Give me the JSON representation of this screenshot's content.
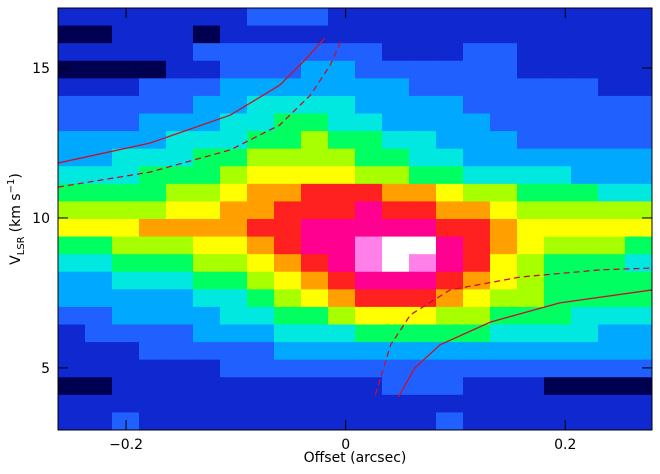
{
  "chart_data": {
    "type": "heatmap",
    "xlabel": "Offset (arcsec)",
    "ylabel": {
      "main": "V",
      "sub": "LSR",
      "unit": "(km s",
      "sup": "−1",
      "close": ")"
    },
    "xlim": [
      -0.262,
      0.279
    ],
    "ylim": [
      2.93,
      17.0
    ],
    "xticks": [
      {
        "value": -0.2,
        "label": "−0.2"
      },
      0,
      0.2
    ],
    "yticks": [
      5,
      10,
      15
    ],
    "colormap": [
      "#000050",
      "#1028d0",
      "#2060ff",
      "#00a8ff",
      "#00e8e0",
      "#00ff60",
      "#a8ff00",
      "#ffff00",
      "#ffa000",
      "#ff2020",
      "#ff0090",
      "#ff80e8",
      "#ffffff"
    ],
    "z": [
      [
        1,
        1,
        1,
        1,
        1,
        1,
        1,
        2,
        2,
        2,
        1,
        1,
        1,
        1,
        1,
        1,
        1,
        1,
        1,
        1,
        1,
        1
      ],
      [
        0,
        0,
        1,
        1,
        1,
        0,
        1,
        1,
        1,
        1,
        1,
        1,
        1,
        1,
        1,
        1,
        1,
        1,
        1,
        1,
        1,
        1
      ],
      [
        1,
        1,
        1,
        1,
        1,
        2,
        2,
        2,
        2,
        2,
        2,
        2,
        1,
        1,
        1,
        2,
        2,
        1,
        1,
        1,
        1,
        1
      ],
      [
        0,
        0,
        0,
        0,
        1,
        1,
        2,
        2,
        2,
        3,
        3,
        2,
        2,
        2,
        2,
        2,
        2,
        1,
        1,
        1,
        1,
        1
      ],
      [
        1,
        1,
        1,
        2,
        2,
        2,
        3,
        3,
        3,
        3,
        3,
        3,
        3,
        2,
        2,
        2,
        2,
        2,
        2,
        2,
        1,
        1
      ],
      [
        2,
        2,
        2,
        2,
        2,
        3,
        3,
        4,
        4,
        4,
        4,
        3,
        3,
        3,
        3,
        2,
        2,
        2,
        2,
        2,
        2,
        2
      ],
      [
        2,
        2,
        2,
        3,
        3,
        3,
        4,
        4,
        5,
        5,
        4,
        4,
        3,
        3,
        3,
        3,
        2,
        2,
        2,
        2,
        2,
        2
      ],
      [
        3,
        3,
        3,
        3,
        4,
        4,
        4,
        5,
        5,
        6,
        5,
        5,
        4,
        4,
        3,
        3,
        3,
        2,
        2,
        2,
        2,
        2
      ],
      [
        3,
        3,
        4,
        4,
        4,
        5,
        5,
        6,
        6,
        6,
        6,
        5,
        5,
        4,
        4,
        3,
        3,
        3,
        3,
        3,
        3,
        3
      ],
      [
        4,
        4,
        4,
        5,
        5,
        5,
        6,
        7,
        7,
        7,
        7,
        6,
        6,
        5,
        5,
        4,
        4,
        4,
        4,
        3,
        3,
        3
      ],
      [
        5,
        5,
        5,
        5,
        6,
        6,
        7,
        8,
        8,
        9,
        9,
        9,
        8,
        8,
        7,
        6,
        6,
        5,
        5,
        5,
        4,
        4
      ],
      [
        6,
        6,
        6,
        6,
        7,
        7,
        8,
        8,
        9,
        9,
        9,
        10,
        9,
        9,
        8,
        8,
        7,
        6,
        6,
        6,
        6,
        6
      ],
      [
        7,
        7,
        7,
        8,
        8,
        8,
        8,
        9,
        9,
        10,
        10,
        10,
        10,
        10,
        9,
        9,
        8,
        7,
        7,
        7,
        7,
        7
      ],
      [
        5,
        5,
        6,
        6,
        6,
        7,
        7,
        8,
        9,
        10,
        10,
        11,
        12,
        12,
        10,
        9,
        8,
        7,
        6,
        6,
        6,
        5
      ],
      [
        4,
        4,
        5,
        5,
        5,
        6,
        6,
        7,
        8,
        9,
        10,
        11,
        12,
        11,
        10,
        9,
        7,
        6,
        5,
        5,
        5,
        4
      ],
      [
        3,
        3,
        4,
        4,
        4,
        5,
        5,
        6,
        7,
        8,
        9,
        10,
        10,
        10,
        9,
        8,
        7,
        6,
        5,
        5,
        5,
        5
      ],
      [
        3,
        3,
        3,
        3,
        3,
        4,
        4,
        5,
        6,
        7,
        8,
        9,
        9,
        9,
        8,
        7,
        6,
        6,
        5,
        5,
        5,
        5
      ],
      [
        2,
        2,
        3,
        3,
        3,
        3,
        4,
        4,
        5,
        5,
        6,
        7,
        7,
        7,
        6,
        6,
        5,
        5,
        5,
        4,
        4,
        4
      ],
      [
        1,
        2,
        2,
        2,
        2,
        3,
        3,
        3,
        4,
        4,
        4,
        5,
        5,
        5,
        5,
        5,
        4,
        4,
        4,
        4,
        3,
        3
      ],
      [
        1,
        1,
        1,
        2,
        2,
        2,
        2,
        2,
        3,
        3,
        3,
        3,
        3,
        3,
        3,
        3,
        3,
        3,
        3,
        3,
        3,
        3
      ],
      [
        1,
        1,
        1,
        1,
        1,
        1,
        2,
        2,
        2,
        2,
        2,
        2,
        2,
        2,
        2,
        2,
        2,
        2,
        2,
        2,
        2,
        2
      ],
      [
        0,
        0,
        1,
        1,
        1,
        1,
        1,
        1,
        1,
        1,
        1,
        1,
        2,
        2,
        2,
        1,
        1,
        1,
        0,
        0,
        0,
        0
      ],
      [
        1,
        1,
        1,
        1,
        1,
        1,
        1,
        1,
        1,
        1,
        1,
        1,
        1,
        1,
        1,
        1,
        1,
        1,
        1,
        1,
        1,
        1
      ],
      [
        1,
        1,
        2,
        1,
        1,
        1,
        1,
        1,
        1,
        1,
        1,
        1,
        1,
        1,
        2,
        1,
        1,
        1,
        1,
        1,
        1,
        1
      ]
    ],
    "curve_color": "#c8102e",
    "curves": [
      {
        "style": "solid",
        "x": [
          -0.262,
          -0.178,
          -0.105,
          -0.06,
          -0.037,
          -0.019
        ],
        "y": [
          11.83,
          12.5,
          13.43,
          14.43,
          15.27,
          16.0
        ]
      },
      {
        "style": "dashed",
        "x": [
          -0.262,
          -0.178,
          -0.105,
          -0.06,
          -0.032,
          -0.014,
          -0.003
        ],
        "y": [
          11.03,
          11.53,
          12.27,
          13.1,
          14.1,
          15.1,
          16.0
        ]
      },
      {
        "style": "dashed",
        "x": [
          0.027,
          0.041,
          0.059,
          0.095,
          0.159,
          0.232,
          0.279
        ],
        "y": [
          4.1,
          5.77,
          6.77,
          7.6,
          8.03,
          8.27,
          8.33
        ]
      },
      {
        "style": "solid",
        "x": [
          0.048,
          0.063,
          0.086,
          0.132,
          0.195,
          0.279
        ],
        "y": [
          4.03,
          5.0,
          5.77,
          6.53,
          7.17,
          7.6
        ]
      }
    ]
  }
}
